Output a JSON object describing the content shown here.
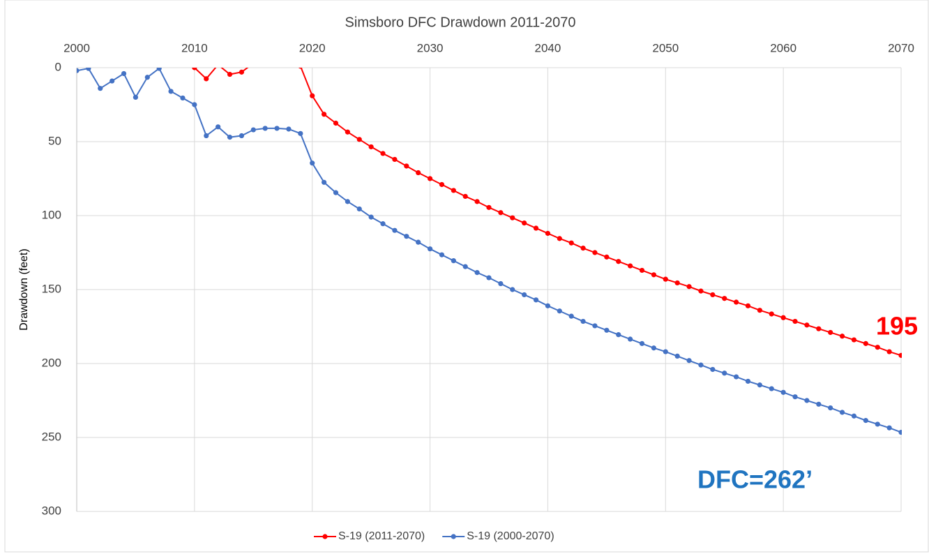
{
  "chart_data": {
    "type": "line",
    "title": "Simsboro DFC Drawdown 2011-2070",
    "y_label": "Drawdown (feet)",
    "x": [
      2000,
      2001,
      2002,
      2003,
      2004,
      2005,
      2006,
      2007,
      2008,
      2009,
      2010,
      2011,
      2012,
      2013,
      2014,
      2015,
      2016,
      2017,
      2018,
      2019,
      2020,
      2021,
      2022,
      2023,
      2024,
      2025,
      2026,
      2027,
      2028,
      2029,
      2030,
      2031,
      2032,
      2033,
      2034,
      2035,
      2036,
      2037,
      2038,
      2039,
      2040,
      2041,
      2042,
      2043,
      2044,
      2045,
      2046,
      2047,
      2048,
      2049,
      2050,
      2051,
      2052,
      2053,
      2054,
      2055,
      2056,
      2057,
      2058,
      2059,
      2060,
      2061,
      2062,
      2063,
      2064,
      2065,
      2066,
      2067,
      2068,
      2069,
      2070
    ],
    "series": [
      {
        "name": "S-19 (2011-2070)",
        "color": "#ff0000",
        "values": [
          null,
          null,
          null,
          null,
          null,
          null,
          null,
          null,
          null,
          null,
          0,
          7.5,
          -2,
          4.5,
          3,
          -3,
          -12,
          -15,
          -8,
          -1,
          19,
          31.5,
          37.5,
          43.5,
          48.5,
          53.5,
          58,
          62,
          66.5,
          71,
          75,
          79,
          83,
          87,
          90.5,
          94.5,
          98,
          101.5,
          105,
          108.5,
          112,
          115.5,
          118.5,
          122,
          125,
          128,
          131,
          134,
          137,
          140,
          143,
          145.5,
          148,
          151,
          153.5,
          156,
          158.5,
          161,
          164,
          166.5,
          169,
          171.5,
          174,
          176.5,
          179,
          181.5,
          184,
          186.5,
          189,
          192,
          194.5
        ]
      },
      {
        "name": "S-19 (2000-2070)",
        "color": "#4472c4",
        "values": [
          2,
          0.5,
          14,
          9,
          4,
          20,
          6.5,
          0.5,
          16,
          20.5,
          25,
          46,
          40,
          47,
          46,
          42,
          41,
          41,
          41.5,
          44.5,
          64.5,
          77.5,
          84.5,
          90.5,
          95.5,
          101,
          105.5,
          110,
          114,
          118,
          122.5,
          126.5,
          130.5,
          134.5,
          138.5,
          142,
          146,
          150,
          153.5,
          157,
          161,
          164.5,
          168,
          171.5,
          174.5,
          177.5,
          180.5,
          183.5,
          186.5,
          189.5,
          192,
          195,
          198,
          201,
          204,
          206.5,
          209,
          212,
          214.5,
          217,
          219.5,
          222.5,
          225,
          227.5,
          230,
          233,
          235.5,
          238.5,
          241,
          243.5,
          246.5
        ]
      }
    ],
    "xlim": [
      2000,
      2070
    ],
    "xticks": [
      2000,
      2010,
      2020,
      2030,
      2040,
      2050,
      2060,
      2070
    ],
    "ylim": [
      0,
      300
    ],
    "yticks": [
      0,
      50,
      100,
      150,
      200,
      250,
      300
    ],
    "y_inverted": true,
    "x_axis_position": "top",
    "grid": true,
    "legend": "bottom",
    "annotations": [
      {
        "text": "195",
        "color": "#ff0000"
      },
      {
        "text": "DFC=262’",
        "color": "#1f74c0"
      }
    ]
  }
}
